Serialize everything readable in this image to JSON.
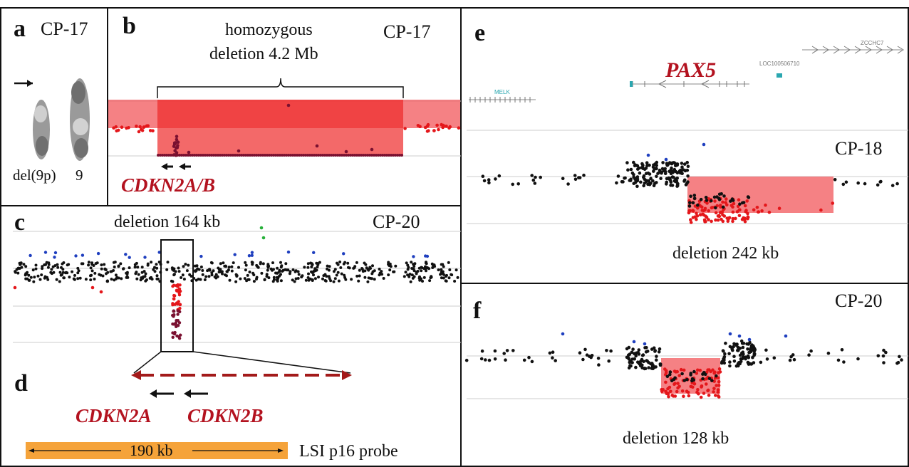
{
  "panels": {
    "a": {
      "letter": "a",
      "sample": "CP-17",
      "label_left": "del(9p)",
      "label_right": "9"
    },
    "b": {
      "letter": "b",
      "sample": "CP-17",
      "title_line1": "homozygous",
      "title_line2": "deletion 4.2 Mb",
      "gene": "CDKN2A/B"
    },
    "c": {
      "letter": "c",
      "sample": "CP-20",
      "title": "deletion 164 kb"
    },
    "d": {
      "letter": "d",
      "gene1": "CDKN2A",
      "gene2": "CDKN2B",
      "probe_size": "190 kb",
      "probe_name": "LSI p16 probe"
    },
    "e": {
      "letter": "e",
      "gene": "PAX5",
      "sample": "CP-18",
      "caption": "deletion 242 kb",
      "track_gene_left": "MELK",
      "track_gene_mid": "LOC100506710",
      "track_gene_right": "ZCCHC7"
    },
    "f": {
      "letter": "f",
      "sample": "CP-20",
      "caption": "deletion 128 kb"
    }
  },
  "colors": {
    "gene_label": "#b3121f",
    "deletion_fill": "#f2575b",
    "deletion_core": "#ee2a2a",
    "probe_bar": "#f5a33a",
    "point_normal": "#111111",
    "point_gain": "#1f3fbf",
    "point_loss": "#e4171b",
    "point_homdel": "#7a1030",
    "point_outlier": "#27b03a"
  }
}
